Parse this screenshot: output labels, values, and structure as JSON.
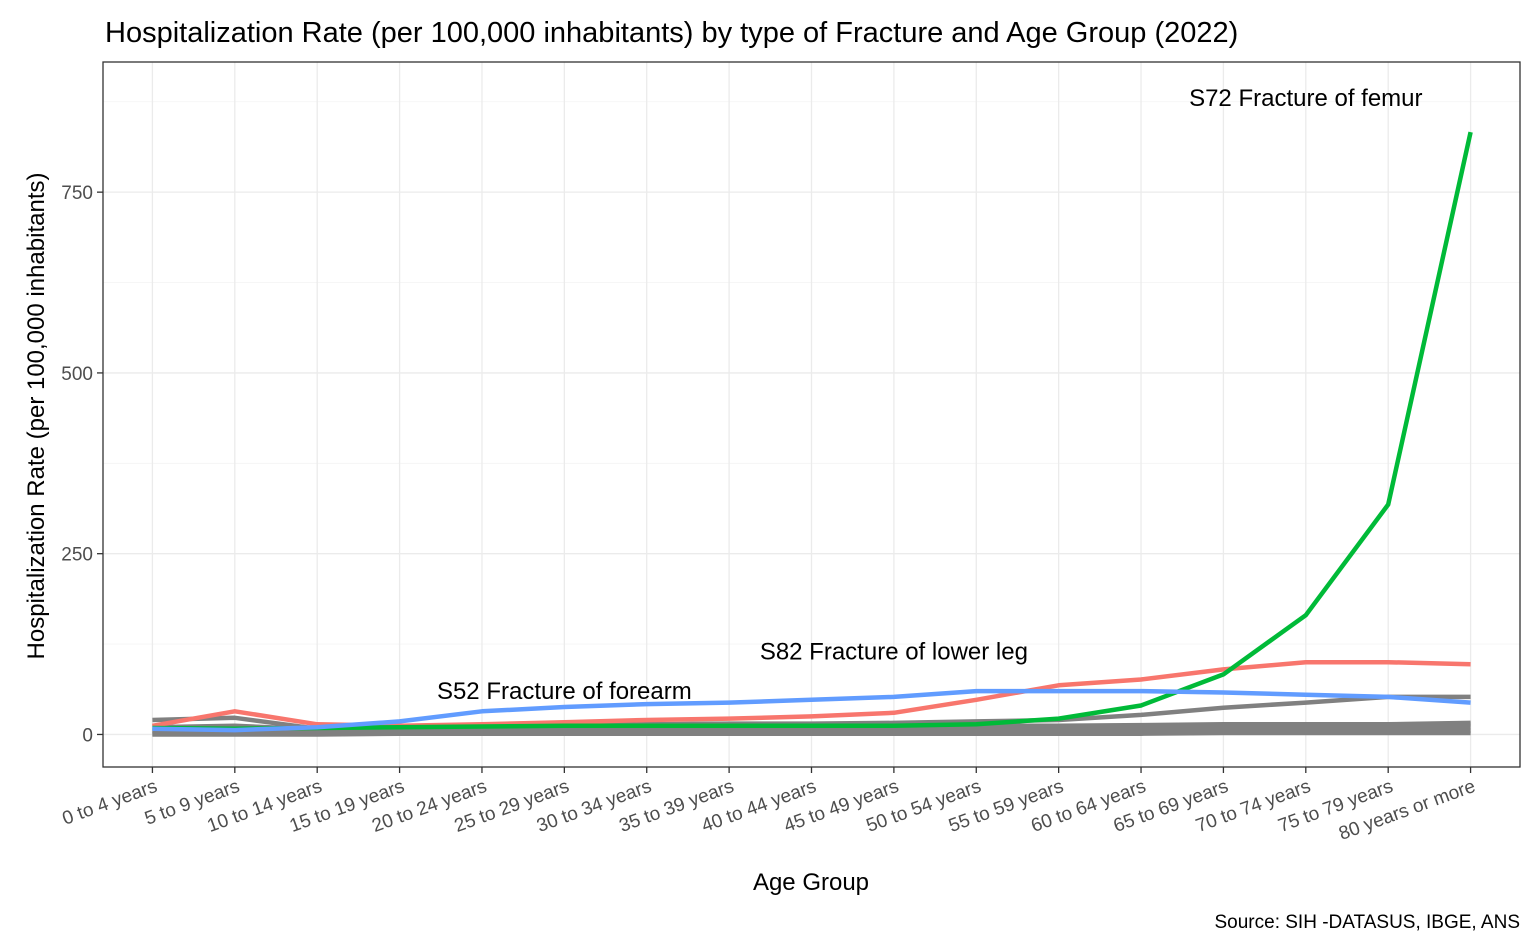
{
  "chart_data": {
    "type": "line",
    "title": "Hospitalization Rate (per 100,000 inhabitants) by type of Fracture and Age Group (2022)",
    "xlabel": "Age Group",
    "ylabel": "Hospitalization Rate (per 100,000 inhabitants)",
    "caption": "Source: SIH -DATASUS, IBGE, ANS",
    "ylim": [
      -45,
      930
    ],
    "yticks": [
      0,
      250,
      500,
      750
    ],
    "ytick_labels": [
      "0",
      "250",
      "500",
      "750"
    ],
    "grid": true,
    "legend": "none",
    "categories": [
      "0 to 4 years",
      "5 to 9 years",
      "10 to 14 years",
      "15 to 19 years",
      "20 to 24 years",
      "25 to 29 years",
      "30 to 34 years",
      "35 to 39 years",
      "40 to 44 years",
      "45 to 49 years",
      "50 to 54 years",
      "55 to 59 years",
      "60 to 64 years",
      "65 to 69 years",
      "70 to 74 years",
      "75 to 79 years",
      "80 years or more"
    ],
    "series": [
      {
        "color": "#808080",
        "values": [
          20,
          23,
          8,
          10,
          12,
          13,
          14,
          15,
          15,
          16,
          18,
          20,
          27,
          37,
          44,
          52,
          52
        ]
      },
      {
        "color": "#808080",
        "values": [
          10,
          12,
          7,
          8,
          9,
          10,
          11,
          11,
          11,
          12,
          12,
          12,
          13,
          14,
          14,
          14,
          16
        ]
      },
      {
        "color": "#808080",
        "values": [
          5,
          6,
          5,
          5,
          6,
          6,
          6,
          7,
          7,
          7,
          7,
          8,
          9,
          10,
          11,
          12,
          14
        ]
      },
      {
        "color": "#808080",
        "values": [
          3,
          4,
          3,
          4,
          4,
          4,
          4,
          5,
          5,
          5,
          5,
          6,
          6,
          7,
          7,
          8,
          10
        ]
      },
      {
        "color": "#808080",
        "values": [
          1,
          1,
          1,
          2,
          2,
          2,
          2,
          2,
          2,
          2,
          3,
          3,
          3,
          3,
          4,
          4,
          5
        ]
      },
      {
        "color": "#808080",
        "values": [
          0,
          0,
          0,
          1,
          1,
          1,
          1,
          1,
          1,
          1,
          1,
          1,
          1,
          2,
          2,
          2,
          2
        ]
      },
      {
        "color": "#F8766D",
        "values": [
          12,
          32,
          14,
          12,
          14,
          17,
          20,
          22,
          25,
          30,
          48,
          68,
          76,
          90,
          100,
          100,
          97
        ]
      },
      {
        "color": "#00BA38",
        "values": [
          9,
          8,
          9,
          10,
          11,
          12,
          12,
          12,
          12,
          12,
          14,
          22,
          40,
          83,
          165,
          318,
          833
        ]
      },
      {
        "color": "#619CFF",
        "values": [
          8,
          6,
          10,
          18,
          32,
          38,
          42,
          44,
          48,
          52,
          60,
          60,
          60,
          58,
          55,
          52,
          44
        ]
      }
    ],
    "annotations": [
      {
        "text": "S72 Fracture of femur",
        "x": "70 to 74 years",
        "y": 880
      },
      {
        "text": "S82 Fracture of lower leg",
        "x": "45 to 49 years",
        "y": 115
      },
      {
        "text": "S52 Fracture of forearm",
        "x": "25 to 29 years",
        "y": 60
      }
    ]
  }
}
